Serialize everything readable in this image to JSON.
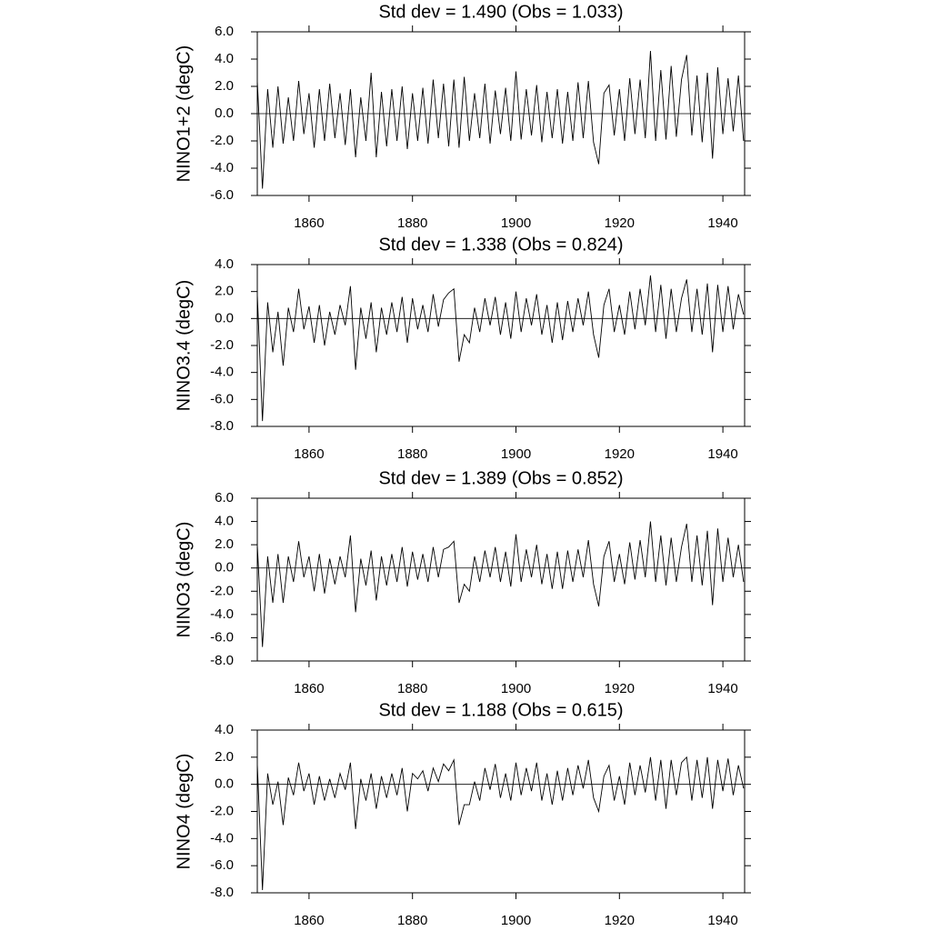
{
  "chart_data": [
    {
      "type": "line",
      "title": "Std dev = 1.490 (Obs = 1.033)",
      "ylabel": "NINO1+2 (degC)",
      "color": "#000000",
      "x": [
        1850,
        1851,
        1852,
        1853,
        1854,
        1855,
        1856,
        1857,
        1858,
        1859,
        1860,
        1861,
        1862,
        1863,
        1864,
        1865,
        1866,
        1867,
        1868,
        1869,
        1870,
        1871,
        1872,
        1873,
        1874,
        1875,
        1876,
        1877,
        1878,
        1879,
        1880,
        1881,
        1882,
        1883,
        1884,
        1885,
        1886,
        1887,
        1888,
        1889,
        1890,
        1891,
        1892,
        1893,
        1894,
        1895,
        1896,
        1897,
        1898,
        1899,
        1900,
        1901,
        1902,
        1903,
        1904,
        1905,
        1906,
        1907,
        1908,
        1909,
        1910,
        1911,
        1912,
        1913,
        1914,
        1915,
        1916,
        1917,
        1918,
        1919,
        1920,
        1921,
        1922,
        1923,
        1924,
        1925,
        1926,
        1927,
        1928,
        1929,
        1930,
        1931,
        1932,
        1933,
        1934,
        1935,
        1936,
        1937,
        1938,
        1939,
        1940,
        1941,
        1942,
        1943,
        1944
      ],
      "values": [
        2.4,
        -5.5,
        1.8,
        -2.5,
        2.0,
        -2.2,
        1.2,
        -2.0,
        2.4,
        -1.5,
        1.5,
        -2.5,
        1.8,
        -2.0,
        2.2,
        -1.8,
        1.5,
        -2.3,
        1.8,
        -3.2,
        1.2,
        -2.0,
        3.0,
        -3.2,
        1.6,
        -2.4,
        1.8,
        -2.0,
        2.0,
        -2.6,
        1.5,
        -2.0,
        1.9,
        -2.2,
        2.5,
        -1.8,
        2.2,
        -2.4,
        2.5,
        -2.5,
        2.7,
        -2.0,
        1.5,
        -1.8,
        2.2,
        -2.2,
        1.7,
        -1.5,
        1.9,
        -2.0,
        3.1,
        -1.9,
        1.8,
        -1.6,
        2.1,
        -2.1,
        1.6,
        -1.8,
        1.8,
        -2.2,
        1.6,
        -2.0,
        2.3,
        -1.8,
        2.4,
        -2.1,
        -3.7,
        1.5,
        2.1,
        -1.6,
        1.8,
        -2.0,
        2.6,
        -1.5,
        2.5,
        -1.8,
        4.6,
        -2.0,
        3.2,
        -1.9,
        3.5,
        -1.7,
        2.5,
        4.3,
        -1.6,
        2.8,
        -2.1,
        3.0,
        -3.3,
        3.4,
        -1.5,
        2.6,
        -1.3,
        2.8,
        -2.0
      ],
      "xlim": [
        1850,
        1944.2
      ],
      "xticks": [
        1860,
        1880,
        1900,
        1920,
        1940
      ],
      "ylim": [
        -6,
        6
      ],
      "yticks": [
        {
          "value": -6,
          "label": "-6.0"
        },
        {
          "value": -4,
          "label": "-4.0"
        },
        {
          "value": -2,
          "label": "-2.0"
        },
        {
          "value": 0,
          "label": "0.0"
        },
        {
          "value": 2,
          "label": "2.0"
        },
        {
          "value": 4,
          "label": "4.0"
        },
        {
          "value": 6,
          "label": "6.0"
        }
      ],
      "hline": 0
    },
    {
      "type": "line",
      "title": "Std dev = 1.338 (Obs = 0.824)",
      "ylabel": "NINO3.4 (degC)",
      "color": "#000000",
      "x": [
        1850,
        1851,
        1852,
        1853,
        1854,
        1855,
        1856,
        1857,
        1858,
        1859,
        1860,
        1861,
        1862,
        1863,
        1864,
        1865,
        1866,
        1867,
        1868,
        1869,
        1870,
        1871,
        1872,
        1873,
        1874,
        1875,
        1876,
        1877,
        1878,
        1879,
        1880,
        1881,
        1882,
        1883,
        1884,
        1885,
        1886,
        1887,
        1888,
        1889,
        1890,
        1891,
        1892,
        1893,
        1894,
        1895,
        1896,
        1897,
        1898,
        1899,
        1900,
        1901,
        1902,
        1903,
        1904,
        1905,
        1906,
        1907,
        1908,
        1909,
        1910,
        1911,
        1912,
        1913,
        1914,
        1915,
        1916,
        1917,
        1918,
        1919,
        1920,
        1921,
        1922,
        1923,
        1924,
        1925,
        1926,
        1927,
        1928,
        1929,
        1930,
        1931,
        1932,
        1933,
        1934,
        1935,
        1936,
        1937,
        1938,
        1939,
        1940,
        1941,
        1942,
        1943,
        1944
      ],
      "values": [
        1.8,
        -7.6,
        1.2,
        -2.5,
        0.5,
        -3.5,
        0.8,
        -1.0,
        2.2,
        -0.8,
        0.9,
        -1.8,
        1.0,
        -2.0,
        0.5,
        -1.2,
        1.0,
        -0.5,
        2.4,
        -3.8,
        0.8,
        -1.5,
        1.2,
        -2.5,
        0.8,
        -1.2,
        1.2,
        -1.0,
        1.6,
        -1.8,
        1.5,
        -0.8,
        1.0,
        -1.0,
        1.8,
        -0.6,
        1.4,
        1.9,
        2.2,
        -3.2,
        -1.2,
        -1.8,
        0.8,
        -1.0,
        1.5,
        -0.5,
        1.6,
        -1.2,
        1.2,
        -1.5,
        2.0,
        -1.0,
        1.5,
        -0.5,
        1.8,
        -1.2,
        1.0,
        -1.8,
        1.2,
        -1.6,
        1.3,
        -1.0,
        1.5,
        -0.5,
        2.0,
        -1.2,
        -2.9,
        1.0,
        2.2,
        -1.0,
        1.0,
        -1.2,
        2.0,
        -0.8,
        2.2,
        -0.5,
        3.2,
        -1.0,
        2.5,
        -1.5,
        2.2,
        -1.0,
        1.5,
        2.9,
        -1.0,
        2.2,
        -1.2,
        2.6,
        -2.5,
        2.5,
        -1.0,
        2.4,
        -0.8,
        1.8,
        0.3
      ],
      "xlim": [
        1850,
        1944.2
      ],
      "xticks": [
        1860,
        1880,
        1900,
        1920,
        1940
      ],
      "ylim": [
        -8,
        4
      ],
      "yticks": [
        {
          "value": -8,
          "label": "-8.0"
        },
        {
          "value": -6,
          "label": "-6.0"
        },
        {
          "value": -4,
          "label": "-4.0"
        },
        {
          "value": -2,
          "label": "-2.0"
        },
        {
          "value": 0,
          "label": "0.0"
        },
        {
          "value": 2,
          "label": "2.0"
        },
        {
          "value": 4,
          "label": "4.0"
        }
      ],
      "hline": 0
    },
    {
      "type": "line",
      "title": "Std dev = 1.389 (Obs = 0.852)",
      "ylabel": "NINO3 (degC)",
      "color": "#000000",
      "x": [
        1850,
        1851,
        1852,
        1853,
        1854,
        1855,
        1856,
        1857,
        1858,
        1859,
        1860,
        1861,
        1862,
        1863,
        1864,
        1865,
        1866,
        1867,
        1868,
        1869,
        1870,
        1871,
        1872,
        1873,
        1874,
        1875,
        1876,
        1877,
        1878,
        1879,
        1880,
        1881,
        1882,
        1883,
        1884,
        1885,
        1886,
        1887,
        1888,
        1889,
        1890,
        1891,
        1892,
        1893,
        1894,
        1895,
        1896,
        1897,
        1898,
        1899,
        1900,
        1901,
        1902,
        1903,
        1904,
        1905,
        1906,
        1907,
        1908,
        1909,
        1910,
        1911,
        1912,
        1913,
        1914,
        1915,
        1916,
        1917,
        1918,
        1919,
        1920,
        1921,
        1922,
        1923,
        1924,
        1925,
        1926,
        1927,
        1928,
        1929,
        1930,
        1931,
        1932,
        1933,
        1934,
        1935,
        1936,
        1937,
        1938,
        1939,
        1940,
        1941,
        1942,
        1943,
        1944
      ],
      "values": [
        2.0,
        -6.8,
        1.0,
        -3.0,
        1.2,
        -3.0,
        1.0,
        -1.2,
        2.3,
        -0.8,
        1.0,
        -2.0,
        1.2,
        -2.2,
        0.8,
        -1.4,
        1.0,
        -0.8,
        2.8,
        -3.8,
        0.8,
        -1.5,
        1.5,
        -2.8,
        1.0,
        -1.5,
        1.2,
        -1.2,
        1.8,
        -1.6,
        1.4,
        -1.0,
        1.2,
        -1.2,
        1.8,
        -0.8,
        1.6,
        1.8,
        2.3,
        -3.0,
        -1.4,
        -2.0,
        1.0,
        -1.2,
        1.5,
        -0.8,
        1.8,
        -1.2,
        1.4,
        -1.6,
        2.9,
        -1.2,
        1.6,
        -0.8,
        2.0,
        -1.4,
        1.2,
        -1.8,
        1.4,
        -1.8,
        1.5,
        -1.2,
        1.6,
        -0.8,
        2.4,
        -1.4,
        -3.3,
        1.0,
        2.3,
        -1.2,
        1.2,
        -1.4,
        2.2,
        -1.0,
        2.4,
        -0.8,
        4.0,
        -1.2,
        2.8,
        -1.5,
        2.6,
        -1.2,
        1.8,
        3.8,
        -1.2,
        2.8,
        -1.5,
        3.2,
        -3.2,
        3.4,
        -1.2,
        2.6,
        -0.8,
        2.0,
        -1.2
      ],
      "xlim": [
        1850,
        1944.2
      ],
      "xticks": [
        1860,
        1880,
        1900,
        1920,
        1940
      ],
      "ylim": [
        -8,
        6
      ],
      "yticks": [
        {
          "value": -8,
          "label": "-8.0"
        },
        {
          "value": -6,
          "label": "-6.0"
        },
        {
          "value": -4,
          "label": "-4.0"
        },
        {
          "value": -2,
          "label": "-2.0"
        },
        {
          "value": 0,
          "label": "0.0"
        },
        {
          "value": 2,
          "label": "2.0"
        },
        {
          "value": 4,
          "label": "4.0"
        },
        {
          "value": 6,
          "label": "6.0"
        }
      ],
      "hline": 0
    },
    {
      "type": "line",
      "title": "Std dev = 1.188 (Obs = 0.615)",
      "ylabel": "NINO4 (degC)",
      "color": "#000000",
      "x": [
        1850,
        1851,
        1852,
        1853,
        1854,
        1855,
        1856,
        1857,
        1858,
        1859,
        1860,
        1861,
        1862,
        1863,
        1864,
        1865,
        1866,
        1867,
        1868,
        1869,
        1870,
        1871,
        1872,
        1873,
        1874,
        1875,
        1876,
        1877,
        1878,
        1879,
        1880,
        1881,
        1882,
        1883,
        1884,
        1885,
        1886,
        1887,
        1888,
        1889,
        1890,
        1891,
        1892,
        1893,
        1894,
        1895,
        1896,
        1897,
        1898,
        1899,
        1900,
        1901,
        1902,
        1903,
        1904,
        1905,
        1906,
        1907,
        1908,
        1909,
        1910,
        1911,
        1912,
        1913,
        1914,
        1915,
        1916,
        1917,
        1918,
        1919,
        1920,
        1921,
        1922,
        1923,
        1924,
        1925,
        1926,
        1927,
        1928,
        1929,
        1930,
        1931,
        1932,
        1933,
        1934,
        1935,
        1936,
        1937,
        1938,
        1939,
        1940,
        1941,
        1942,
        1943,
        1944
      ],
      "values": [
        1.5,
        -7.8,
        0.8,
        -1.5,
        0.2,
        -3.0,
        0.5,
        -0.8,
        1.6,
        -0.5,
        0.8,
        -1.5,
        0.6,
        -1.2,
        0.4,
        -1.0,
        0.8,
        -0.4,
        1.6,
        -3.3,
        0.4,
        -1.2,
        0.8,
        -1.8,
        0.6,
        -1.0,
        0.8,
        -0.8,
        1.2,
        -2.0,
        0.8,
        0.4,
        1.0,
        -0.5,
        1.2,
        0.2,
        1.5,
        1.0,
        1.8,
        -3.0,
        -1.5,
        -1.5,
        0.2,
        -1.2,
        1.2,
        -0.4,
        1.5,
        -1.0,
        0.8,
        -1.2,
        1.6,
        -0.8,
        1.2,
        -0.5,
        1.6,
        -1.2,
        0.8,
        -1.5,
        1.0,
        -1.2,
        1.2,
        -0.8,
        1.4,
        -0.3,
        1.8,
        -1.0,
        -2.0,
        0.6,
        1.4,
        -1.2,
        0.6,
        -1.5,
        1.6,
        -0.8,
        1.4,
        -0.6,
        2.0,
        -1.2,
        1.8,
        -1.8,
        1.8,
        -0.8,
        1.6,
        2.0,
        -1.2,
        1.8,
        -1.0,
        2.0,
        -1.8,
        1.8,
        -0.5,
        1.9,
        -0.8,
        1.4,
        -0.3
      ],
      "xlim": [
        1850,
        1944.2
      ],
      "xticks": [
        1860,
        1880,
        1900,
        1920,
        1940
      ],
      "ylim": [
        -8,
        4
      ],
      "yticks": [
        {
          "value": -8,
          "label": "-8.0"
        },
        {
          "value": -6,
          "label": "-6.0"
        },
        {
          "value": -4,
          "label": "-4.0"
        },
        {
          "value": -2,
          "label": "-2.0"
        },
        {
          "value": 0,
          "label": "0.0"
        },
        {
          "value": 2,
          "label": "2.0"
        },
        {
          "value": 4,
          "label": "4.0"
        }
      ],
      "hline": 0
    }
  ]
}
